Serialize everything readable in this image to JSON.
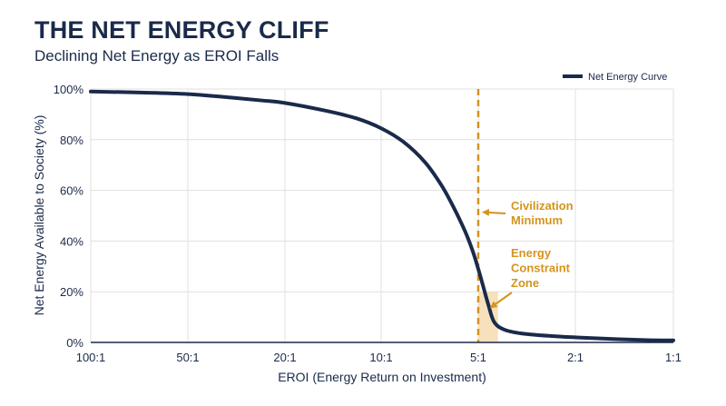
{
  "header": {
    "title": "THE NET ENERGY CLIFF",
    "subtitle": "Declining Net Energy as EROI Falls"
  },
  "chart_data": {
    "type": "line",
    "title": "THE NET ENERGY CLIFF",
    "subtitle": "Declining Net Energy as EROI Falls",
    "xlabel": "EROI (Energy Return on Investment)",
    "ylabel": "Net Energy Available to Society (%)",
    "x_scale": "log-reversed",
    "x_ticks": [
      {
        "value": 100,
        "label": "100:1"
      },
      {
        "value": 50,
        "label": "50:1"
      },
      {
        "value": 20,
        "label": "20:1"
      },
      {
        "value": 10,
        "label": "10:1"
      },
      {
        "value": 5,
        "label": "5:1"
      },
      {
        "value": 2,
        "label": "2:1"
      },
      {
        "value": 1,
        "label": "1:1"
      }
    ],
    "y_ticks": [
      "0%",
      "20%",
      "40%",
      "60%",
      "80%",
      "100%"
    ],
    "ylim": [
      0,
      100
    ],
    "grid": true,
    "legend": {
      "placement": "top-right",
      "entries": [
        "Net Energy Curve"
      ]
    },
    "series": [
      {
        "name": "Net Energy Curve",
        "color": "#1a2a4a",
        "points": [
          {
            "x": 100,
            "y": 99
          },
          {
            "x": 70,
            "y": 98.6
          },
          {
            "x": 50,
            "y": 98
          },
          {
            "x": 35,
            "y": 96.8
          },
          {
            "x": 25,
            "y": 95.5
          },
          {
            "x": 20,
            "y": 94.5
          },
          {
            "x": 15,
            "y": 91.5
          },
          {
            "x": 12,
            "y": 88.5
          },
          {
            "x": 10,
            "y": 84.5
          },
          {
            "x": 8.5,
            "y": 79
          },
          {
            "x": 7.3,
            "y": 71
          },
          {
            "x": 6.5,
            "y": 62
          },
          {
            "x": 6.0,
            "y": 54
          },
          {
            "x": 5.5,
            "y": 44
          },
          {
            "x": 5.2,
            "y": 36
          },
          {
            "x": 5.0,
            "y": 29
          },
          {
            "x": 4.8,
            "y": 23
          },
          {
            "x": 4.55,
            "y": 15
          },
          {
            "x": 4.3,
            "y": 8
          },
          {
            "x": 3.9,
            "y": 5
          },
          {
            "x": 3.3,
            "y": 3.5
          },
          {
            "x": 2.5,
            "y": 2.5
          },
          {
            "x": 2.0,
            "y": 2
          },
          {
            "x": 1.5,
            "y": 1.3
          },
          {
            "x": 1.2,
            "y": 0.9
          },
          {
            "x": 1.0,
            "y": 0.8
          }
        ]
      }
    ],
    "civilization_minimum": {
      "x": 5,
      "color": "#d4941e"
    },
    "constraint_zone": {
      "x_from": 5,
      "x_to": 4.15,
      "y_from": 0,
      "y_to": 20,
      "color": "#f6dbb0"
    },
    "annotations": [
      {
        "lines": [
          "Civilization",
          "Minimum"
        ],
        "points_to": {
          "x": 5,
          "y": 51
        }
      },
      {
        "lines": [
          "Energy",
          "Constraint",
          "Zone"
        ],
        "points_to": {
          "x": 4.6,
          "y": 12
        }
      }
    ]
  }
}
